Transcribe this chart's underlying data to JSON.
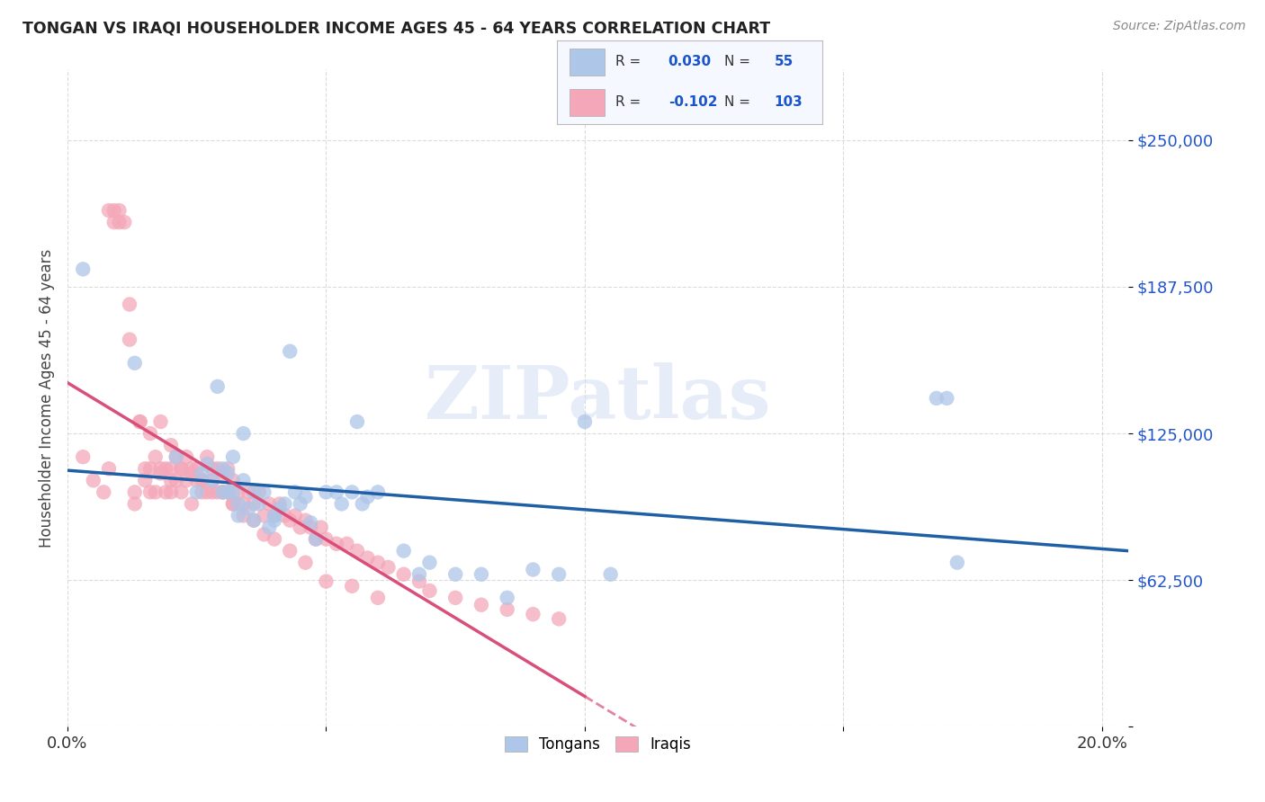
{
  "title": "TONGAN VS IRAQI HOUSEHOLDER INCOME AGES 45 - 64 YEARS CORRELATION CHART",
  "source": "Source: ZipAtlas.com",
  "ylabel": "Householder Income Ages 45 - 64 years",
  "xlim": [
    0.0,
    0.205
  ],
  "ylim": [
    0,
    280000
  ],
  "yticks": [
    0,
    62500,
    125000,
    187500,
    250000
  ],
  "ytick_labels": [
    "",
    "$62,500",
    "$125,000",
    "$187,500",
    "$250,000"
  ],
  "xticks": [
    0.0,
    0.05,
    0.1,
    0.15,
    0.2
  ],
  "xtick_labels": [
    "0.0%",
    "",
    "",
    "",
    "20.0%"
  ],
  "grid_color": "#cccccc",
  "background_color": "#ffffff",
  "tongan_color": "#aec6e8",
  "iraqi_color": "#f4a7b9",
  "tongan_R": 0.03,
  "tongan_N": 55,
  "iraqi_R": -0.102,
  "iraqi_N": 103,
  "tongan_line_color": "#1f5fa6",
  "iraqi_line_color": "#d94f7a",
  "watermark": "ZIPatlas",
  "tongan_x": [
    0.003,
    0.013,
    0.021,
    0.025,
    0.026,
    0.027,
    0.028,
    0.029,
    0.03,
    0.03,
    0.031,
    0.031,
    0.032,
    0.032,
    0.033,
    0.033,
    0.034,
    0.034,
    0.035,
    0.036,
    0.036,
    0.037,
    0.038,
    0.039,
    0.04,
    0.04,
    0.041,
    0.042,
    0.043,
    0.044,
    0.045,
    0.046,
    0.047,
    0.048,
    0.05,
    0.052,
    0.053,
    0.055,
    0.056,
    0.057,
    0.058,
    0.06,
    0.065,
    0.068,
    0.07,
    0.075,
    0.08,
    0.085,
    0.09,
    0.095,
    0.1,
    0.105,
    0.168,
    0.17,
    0.172
  ],
  "tongan_y": [
    195000,
    155000,
    115000,
    100000,
    108000,
    112000,
    105000,
    145000,
    100000,
    110000,
    108000,
    100000,
    115000,
    100000,
    95000,
    90000,
    105000,
    125000,
    93000,
    100000,
    88000,
    95000,
    100000,
    85000,
    90000,
    88000,
    93000,
    95000,
    160000,
    100000,
    95000,
    98000,
    87000,
    80000,
    100000,
    100000,
    95000,
    100000,
    130000,
    95000,
    98000,
    100000,
    75000,
    65000,
    70000,
    65000,
    65000,
    55000,
    67000,
    65000,
    130000,
    65000,
    140000,
    140000,
    70000
  ],
  "iraqi_x": [
    0.003,
    0.005,
    0.007,
    0.008,
    0.009,
    0.01,
    0.011,
    0.012,
    0.013,
    0.013,
    0.014,
    0.015,
    0.015,
    0.016,
    0.016,
    0.017,
    0.017,
    0.018,
    0.018,
    0.019,
    0.019,
    0.02,
    0.02,
    0.02,
    0.021,
    0.021,
    0.022,
    0.022,
    0.023,
    0.023,
    0.024,
    0.024,
    0.025,
    0.025,
    0.026,
    0.026,
    0.027,
    0.027,
    0.028,
    0.028,
    0.029,
    0.029,
    0.03,
    0.03,
    0.031,
    0.031,
    0.032,
    0.032,
    0.033,
    0.034,
    0.035,
    0.036,
    0.037,
    0.038,
    0.039,
    0.04,
    0.041,
    0.042,
    0.043,
    0.044,
    0.045,
    0.046,
    0.047,
    0.048,
    0.049,
    0.05,
    0.052,
    0.054,
    0.056,
    0.058,
    0.06,
    0.062,
    0.065,
    0.068,
    0.07,
    0.075,
    0.08,
    0.085,
    0.09,
    0.095,
    0.008,
    0.009,
    0.01,
    0.012,
    0.014,
    0.016,
    0.018,
    0.02,
    0.022,
    0.024,
    0.026,
    0.028,
    0.03,
    0.032,
    0.034,
    0.036,
    0.038,
    0.04,
    0.043,
    0.046,
    0.05,
    0.055,
    0.06
  ],
  "iraqi_y": [
    115000,
    105000,
    100000,
    110000,
    215000,
    220000,
    215000,
    180000,
    100000,
    95000,
    130000,
    105000,
    110000,
    100000,
    125000,
    115000,
    100000,
    108000,
    130000,
    110000,
    100000,
    110000,
    120000,
    100000,
    115000,
    105000,
    110000,
    100000,
    115000,
    105000,
    110000,
    95000,
    110000,
    105000,
    105000,
    100000,
    115000,
    100000,
    110000,
    105000,
    110000,
    100000,
    108000,
    100000,
    110000,
    100000,
    105000,
    95000,
    100000,
    95000,
    100000,
    95000,
    100000,
    90000,
    95000,
    90000,
    95000,
    90000,
    88000,
    90000,
    85000,
    88000,
    85000,
    80000,
    85000,
    80000,
    78000,
    78000,
    75000,
    72000,
    70000,
    68000,
    65000,
    62000,
    58000,
    55000,
    52000,
    50000,
    48000,
    46000,
    220000,
    220000,
    215000,
    165000,
    130000,
    110000,
    110000,
    105000,
    110000,
    108000,
    105000,
    100000,
    100000,
    95000,
    90000,
    88000,
    82000,
    80000,
    75000,
    70000,
    62000,
    60000,
    55000
  ]
}
